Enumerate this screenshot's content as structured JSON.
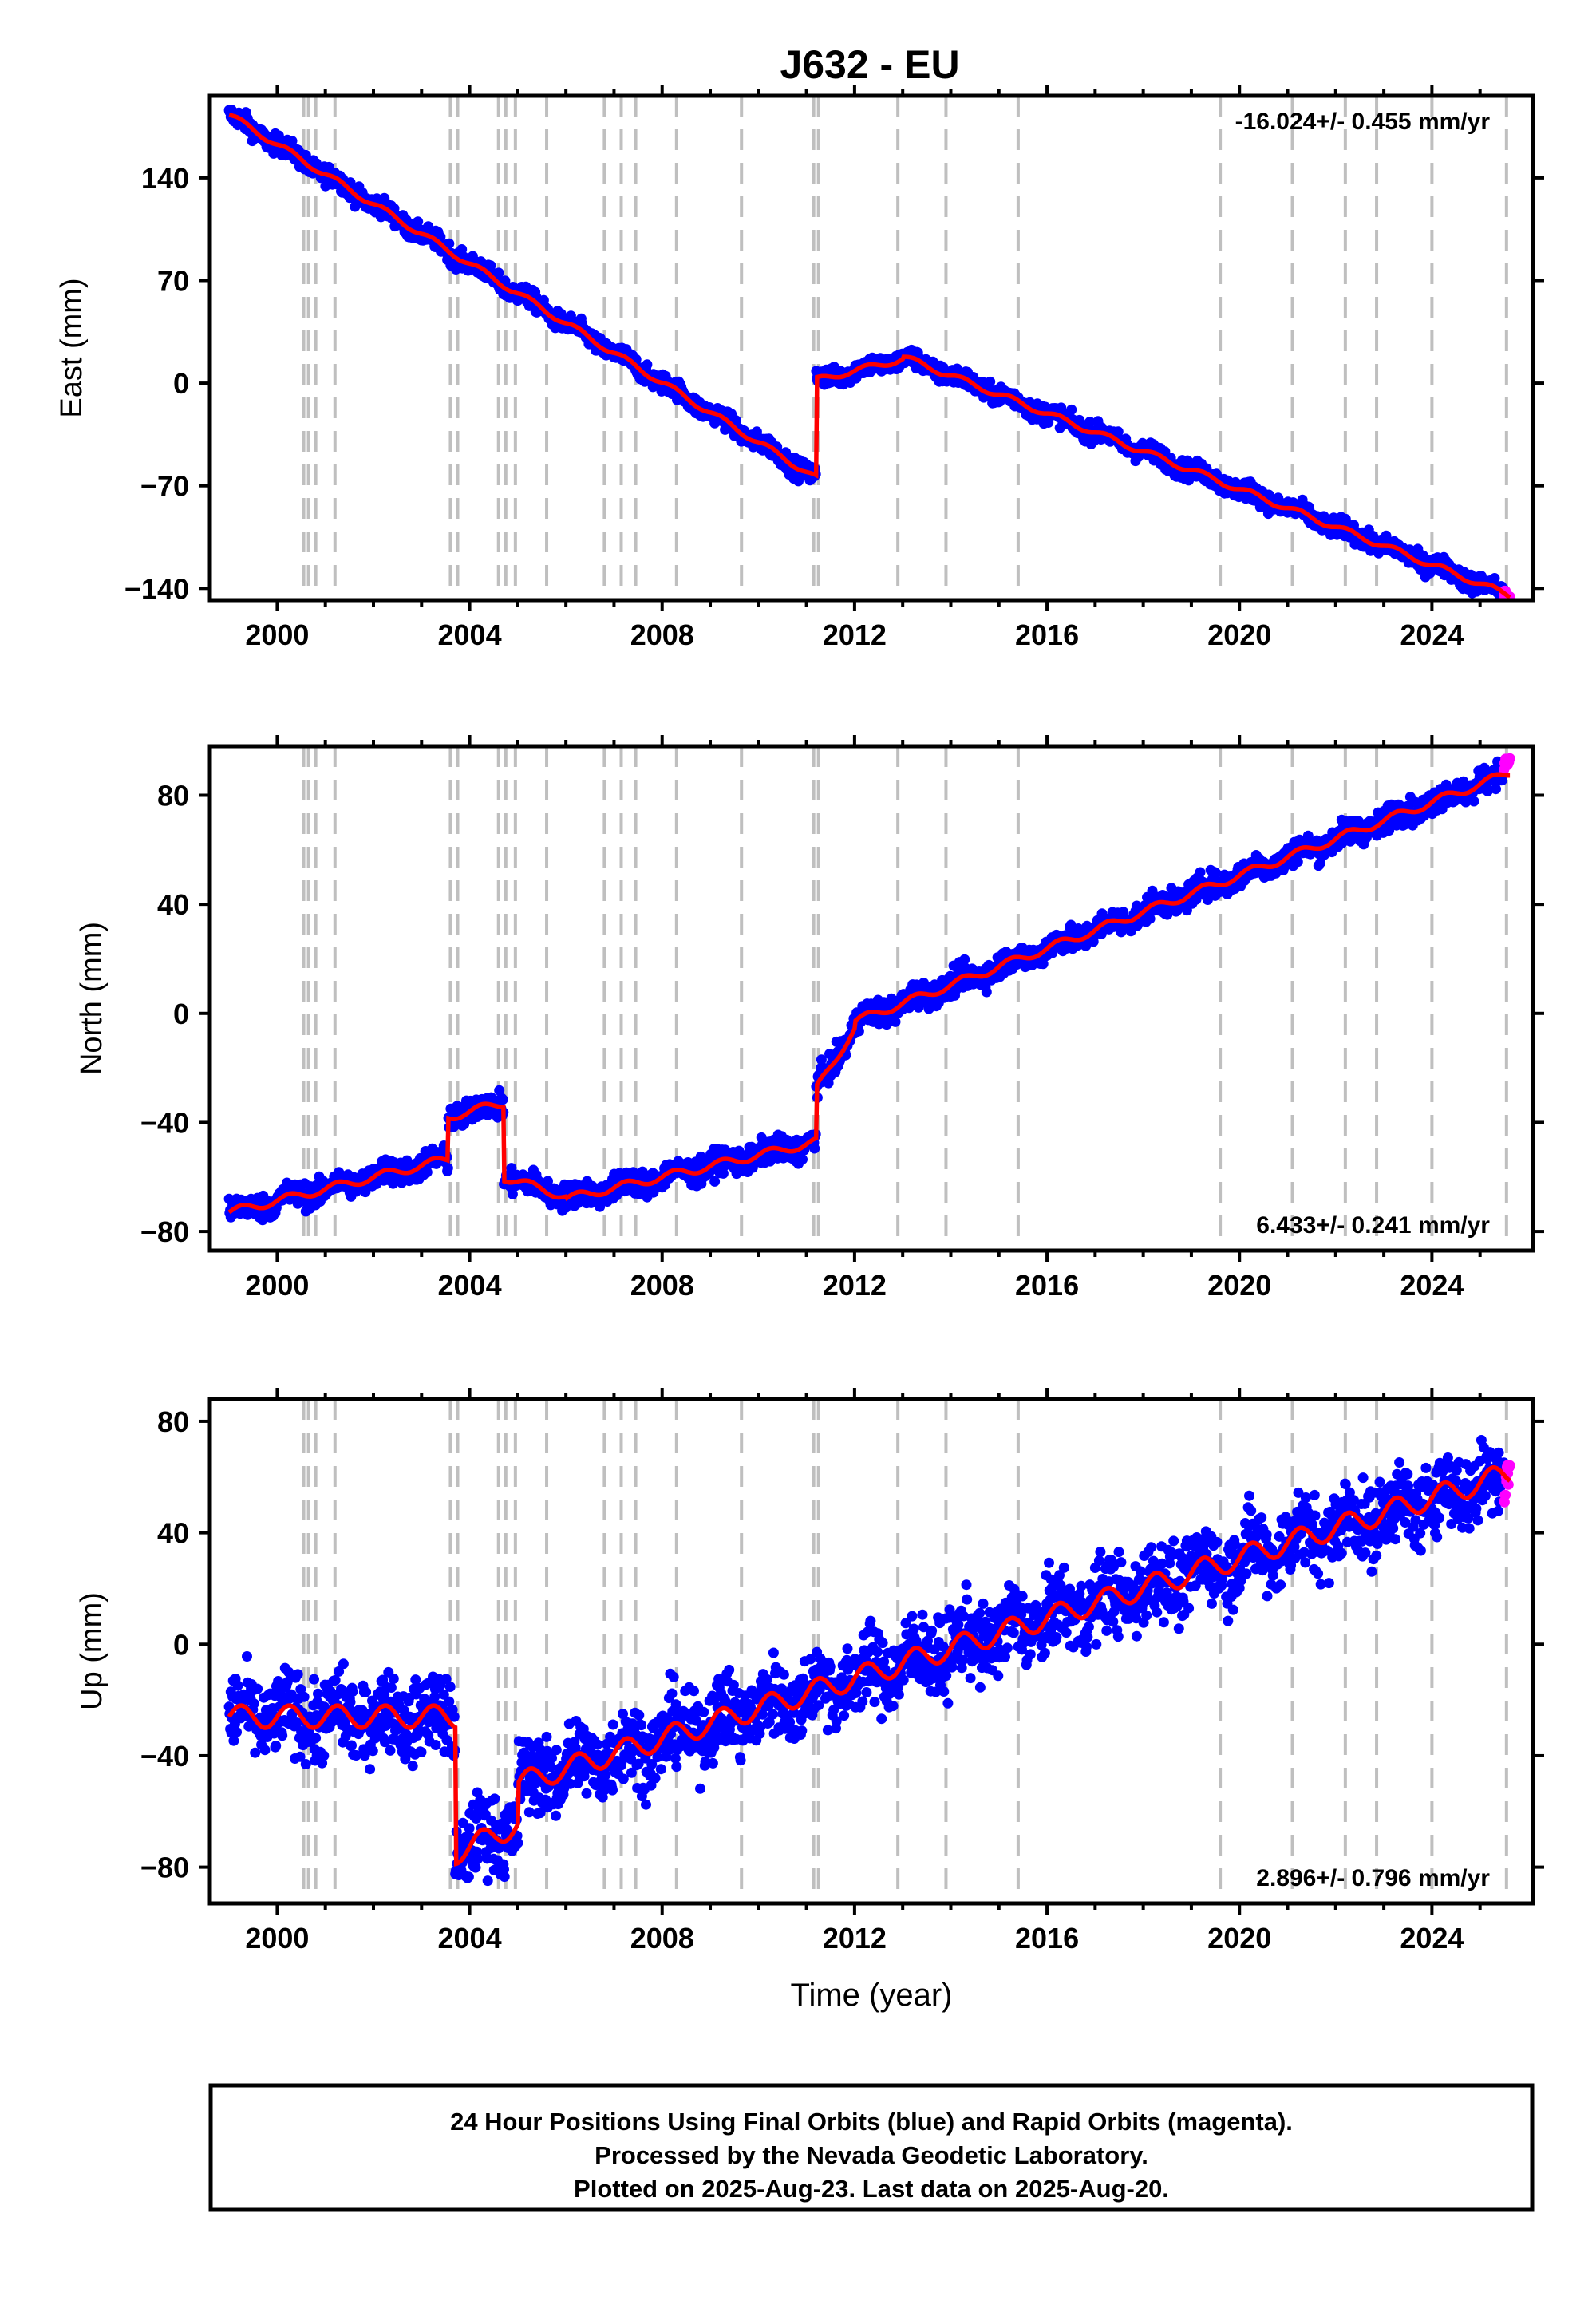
{
  "title": "J632 - EU",
  "colors": {
    "final_orbits": "#0000ff",
    "rapid_orbits": "#ff00ff",
    "model": "#ff0000",
    "event_lines": "#bfbfbf",
    "frame": "#000000"
  },
  "chart_data": [
    {
      "type": "scatter",
      "component": "east",
      "ylabel": "East (mm)",
      "xlim": [
        1998.6,
        2026.1
      ],
      "ylim": [
        -148,
        196
      ],
      "yticks": [
        -140,
        -70,
        0,
        70,
        140
      ],
      "xticks": [
        2000,
        2004,
        2008,
        2012,
        2016,
        2020,
        2024
      ],
      "rate": "-16.024+/- 0.455 mm/yr",
      "rate_position": "top-right",
      "scatter": 3.2,
      "segments": [
        {
          "t0": 1999.0,
          "t1": 2011.2,
          "y0": 183,
          "slope": -20.3
        },
        {
          "t0": 2011.2,
          "t1": 2013.0,
          "y0": 2,
          "slope": 8.0
        },
        {
          "t0": 2013.0,
          "t1": 2025.62,
          "y0": 18,
          "slope": -12.9
        }
      ],
      "seasonal_amplitude": 2.0,
      "rapid_orbits": {
        "t0": 2025.5,
        "t1": 2025.62,
        "y0": -143,
        "y1": -147
      }
    },
    {
      "type": "scatter",
      "component": "north",
      "ylabel": "North (mm)",
      "xlim": [
        1998.6,
        2026.1
      ],
      "ylim": [
        -87,
        98
      ],
      "yticks": [
        -80,
        -40,
        0,
        40,
        80
      ],
      "xticks": [
        2000,
        2004,
        2008,
        2012,
        2016,
        2020,
        2024
      ],
      "rate": "6.433+/- 0.241 mm/yr",
      "rate_position": "bottom-right",
      "scatter": 2.3,
      "segments": [
        {
          "t0": 1999.0,
          "t1": 2003.55,
          "y0": -73,
          "slope": 4.3
        },
        {
          "t0": 2003.55,
          "t1": 2004.7,
          "y0": -38,
          "slope": 4.5
        },
        {
          "t0": 2004.7,
          "t1": 2006.0,
          "y0": -60,
          "slope": -5.5
        },
        {
          "t0": 2006.0,
          "t1": 2011.2,
          "y0": -68,
          "slope": 4.0
        },
        {
          "t0": 2011.2,
          "t1": 2012.0,
          "y0": -28,
          "slope": 28.0
        },
        {
          "t0": 2012.0,
          "t1": 2025.62,
          "y0": -3,
          "slope": 6.7
        }
      ],
      "seasonal_amplitude": 1.5,
      "rapid_orbits": {
        "t0": 2025.5,
        "t1": 2025.62,
        "y0": 91,
        "y1": 93
      }
    },
    {
      "type": "scatter",
      "component": "up",
      "ylabel": "Up (mm)",
      "xlabel": "Time (year)",
      "xlim": [
        1998.6,
        2026.1
      ],
      "ylim": [
        -93,
        88
      ],
      "yticks": [
        -80,
        -40,
        0,
        40,
        80
      ],
      "xticks": [
        2000,
        2004,
        2008,
        2012,
        2016,
        2020,
        2024
      ],
      "rate": "2.896+/- 0.796 mm/yr",
      "rate_position": "bottom-right",
      "scatter": 7.0,
      "segments": [
        {
          "t0": 1999.0,
          "t1": 2003.7,
          "y0": -26,
          "slope": 0.0
        },
        {
          "t0": 2003.7,
          "t1": 2005.0,
          "y0": -75,
          "slope": 8.0
        },
        {
          "t0": 2005.0,
          "t1": 2025.62,
          "y0": -50,
          "slope": 5.4
        }
      ],
      "seasonal_amplitude": 4.0,
      "rapid_orbits": {
        "t0": 2025.5,
        "t1": 2025.62,
        "y0": 52,
        "y1": 66
      }
    }
  ],
  "event_lines": [
    2000.55,
    2000.65,
    2000.8,
    2001.2,
    2003.6,
    2003.75,
    2004.6,
    2004.75,
    2004.95,
    2005.6,
    2006.8,
    2007.15,
    2007.45,
    2008.3,
    2009.65,
    2011.15,
    2011.25,
    2012.9,
    2013.9,
    2015.4,
    2019.6,
    2021.1,
    2022.2,
    2022.85,
    2024.0,
    2025.55
  ],
  "footer": {
    "line1": "24 Hour Positions Using Final Orbits (blue) and Rapid Orbits (magenta).",
    "line2": "Processed by the Nevada Geodetic Laboratory.",
    "line3": "Plotted on 2025-Aug-23. Last data on 2025-Aug-20."
  }
}
